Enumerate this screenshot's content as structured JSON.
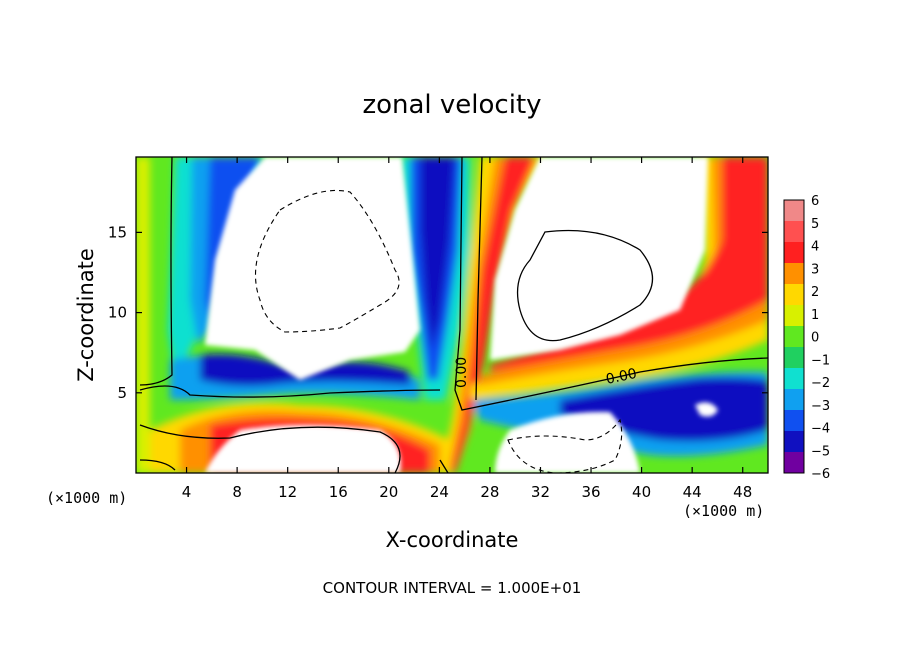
{
  "chart_data": {
    "type": "heatmap",
    "title": "zonal velocity",
    "xlabel": "X-coordinate",
    "ylabel": "Z-coordinate",
    "x_unit": "(×1000 m)",
    "y_unit": "(×1000 m)",
    "xlim": [
      0,
      50
    ],
    "ylim": [
      0,
      19.7
    ],
    "x_ticks": [
      4,
      8,
      12,
      16,
      20,
      24,
      28,
      32,
      36,
      40,
      44,
      48
    ],
    "y_ticks": [
      5,
      10,
      15
    ],
    "colorbar": {
      "ticks": [
        6,
        5,
        4,
        3,
        2,
        1,
        0,
        -1,
        -2,
        -3,
        -4,
        -5,
        -6
      ],
      "colors": [
        "#f08888",
        "#ff5050",
        "#ff2020",
        "#ff9000",
        "#ffd800",
        "#d8f000",
        "#60e820",
        "#20d060",
        "#10e0d0",
        "#10a0f0",
        "#1050f0",
        "#1010c0",
        "#7000a0"
      ]
    },
    "contour_labels": [
      {
        "text": "0.00",
        "x": 25.2,
        "y": 6.7
      },
      {
        "text": "0.00",
        "x": 39.0,
        "y": 6.2
      }
    ],
    "note": "CONTOUR INTERVAL = 1.000E+01"
  }
}
